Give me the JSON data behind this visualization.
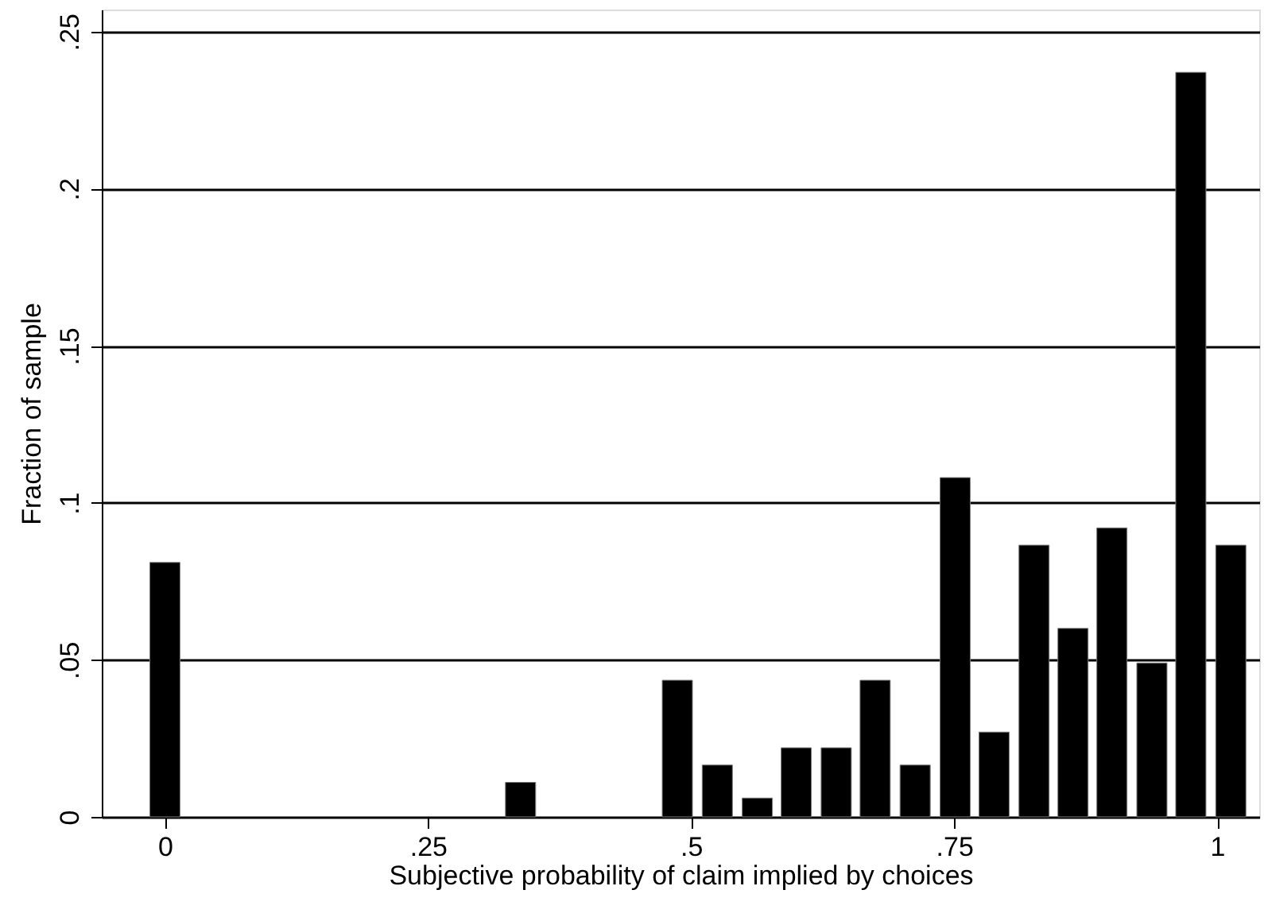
{
  "chart_data": {
    "type": "bar",
    "xlabel": "Subjective probability of claim implied by choices",
    "ylabel": "Fraction of sample",
    "x": [
      0,
      0.338,
      0.487,
      0.525,
      0.563,
      0.6,
      0.638,
      0.675,
      0.713,
      0.751,
      0.788,
      0.826,
      0.863,
      0.9,
      0.938,
      0.975,
      1.013
    ],
    "values": [
      0.081,
      0.011,
      0.0435,
      0.0165,
      0.006,
      0.022,
      0.022,
      0.0435,
      0.0165,
      0.108,
      0.027,
      0.0865,
      0.06,
      0.092,
      0.049,
      0.237,
      0.0865
    ],
    "color": "#000000",
    "xlim": [
      -0.06,
      1.04
    ],
    "ylim": [
      0,
      0.257
    ],
    "xticks": [
      0,
      {
        "value": 0.25,
        "label": ".25"
      },
      {
        "value": 0.5,
        "label": ".5"
      },
      {
        "value": 0.75,
        "label": ".75"
      },
      1
    ],
    "yticks": [
      0,
      {
        "value": 0.05,
        "label": ".05"
      },
      {
        "value": 0.1,
        "label": ".1"
      },
      {
        "value": 0.15,
        "label": ".15"
      },
      {
        "value": 0.2,
        "label": ".2"
      },
      {
        "value": 0.25,
        "label": ".25"
      }
    ],
    "grid": "y"
  }
}
